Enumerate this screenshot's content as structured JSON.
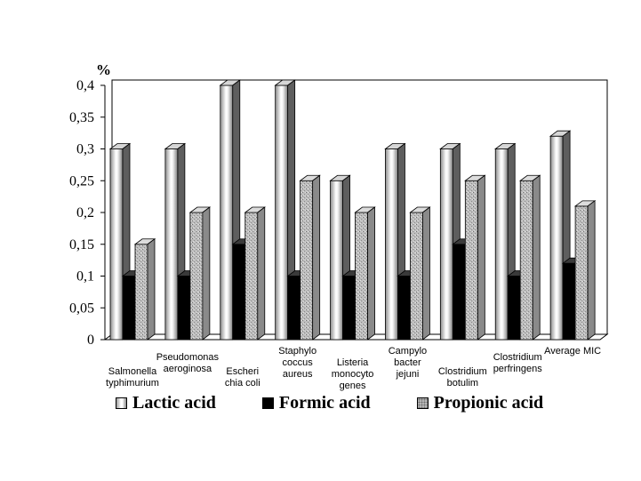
{
  "chart_data": {
    "type": "bar",
    "unit_label": "%",
    "categories": [
      [
        "Salmonella",
        "typhimurium"
      ],
      [
        "Pseudomonas",
        "aeroginosa"
      ],
      [
        "Escheri",
        "chia coli"
      ],
      [
        "Staphylo",
        "coccus",
        "aureus"
      ],
      [
        "Listeria",
        "monocyto",
        "genes"
      ],
      [
        "Campylo",
        "bacter",
        "jejuni"
      ],
      [
        "Clostridium",
        "botulim"
      ],
      [
        "Clostridium",
        "perfringens"
      ],
      [
        "Average MIC"
      ]
    ],
    "series": [
      {
        "name": "Lactic acid",
        "values": [
          0.3,
          0.3,
          0.4,
          0.4,
          0.25,
          0.3,
          0.3,
          0.3,
          0.32
        ]
      },
      {
        "name": "Formic acid",
        "values": [
          0.1,
          0.1,
          0.15,
          0.1,
          0.1,
          0.1,
          0.15,
          0.1,
          0.12
        ]
      },
      {
        "name": "Propionic acid",
        "values": [
          0.15,
          0.2,
          0.2,
          0.25,
          0.2,
          0.2,
          0.25,
          0.25,
          0.21
        ]
      }
    ],
    "yticks": [
      "0",
      "0,05",
      "0,1",
      "0,15",
      "0,2",
      "0,25",
      "0,3",
      "0,35",
      "0,4"
    ],
    "ylim": [
      0,
      0.4
    ],
    "grid": false,
    "legend_position": "bottom"
  }
}
